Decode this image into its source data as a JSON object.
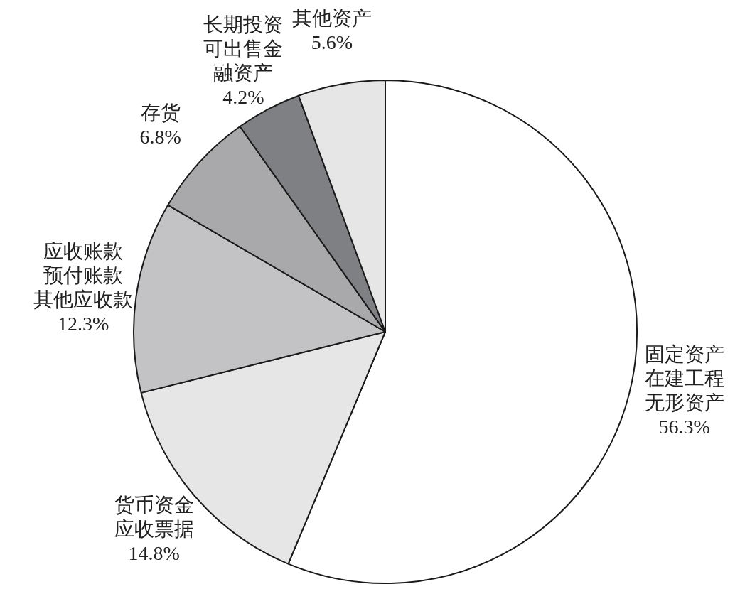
{
  "chart_data": {
    "type": "pie",
    "categories": [
      "固定资产在建工程无形资产",
      "货币资金应收票据",
      "应收账款预付账款其他应收款",
      "存货",
      "长期投资可出售金融资产",
      "其他资产"
    ],
    "values": [
      56.3,
      14.8,
      12.3,
      6.8,
      4.2,
      5.6
    ],
    "value_labels": [
      "56.3%",
      "14.8%",
      "12.3%",
      "6.8%",
      "4.2%",
      "5.6%"
    ],
    "colors": [
      "#ffffff",
      "#e6e6e6",
      "#c3c3c5",
      "#a9a9ab",
      "#7f8083",
      "#e6e6e6"
    ],
    "legend": false
  }
}
